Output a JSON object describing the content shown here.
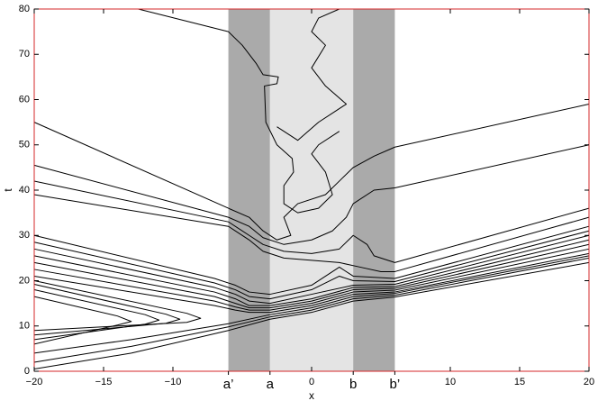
{
  "chart_data": {
    "type": "line",
    "xlabel": "x",
    "ylabel": "t",
    "xlim": [
      -20,
      20
    ],
    "ylim": [
      0,
      80
    ],
    "xticks": [
      {
        "value": -20,
        "label": "−20"
      },
      {
        "value": -15,
        "label": "−15"
      },
      {
        "value": -10,
        "label": "−10"
      },
      0,
      10,
      15,
      20
    ],
    "yticks": [
      0,
      10,
      20,
      30,
      40,
      50,
      60,
      70,
      80
    ],
    "frame_color": "#d62728",
    "bands": [
      {
        "from": -6,
        "to": -3,
        "color": "#aaaaaa"
      },
      {
        "from": -3,
        "to": 3,
        "color": "#e4e4e4"
      },
      {
        "from": 3,
        "to": 6,
        "color": "#aaaaaa"
      }
    ],
    "xmarkers": [
      {
        "value": -6,
        "label": "a’"
      },
      {
        "value": -3,
        "label": "a"
      },
      {
        "value": 3,
        "label": "b"
      },
      {
        "value": 6,
        "label": "b’"
      }
    ],
    "series": [
      {
        "color": "#000000",
        "x": [
          -12.5,
          -6,
          -5,
          -4,
          -3.5,
          -2.4,
          -2.5,
          -3.4,
          -3.3,
          -2.5,
          -1.4,
          -1.3,
          -2,
          -2,
          -1,
          0.5,
          1.5,
          1,
          0,
          0.5,
          2
        ],
        "values": [
          80,
          75,
          72,
          68,
          65.5,
          65,
          63.5,
          63,
          55,
          50,
          47,
          44,
          41,
          37,
          35,
          36,
          39,
          44,
          48,
          50,
          53
        ]
      },
      {
        "color": "#000000",
        "x": [
          -2.5,
          -1,
          0.5,
          2.5,
          1,
          0,
          1,
          0,
          0.5,
          2
        ],
        "values": [
          54,
          51,
          55,
          59,
          63,
          67,
          72,
          75,
          78,
          80
        ]
      },
      {
        "color": "#000000",
        "x": [
          -20,
          -6,
          -4.5,
          -3.5,
          -2.5,
          -1.5,
          -2,
          -1,
          1,
          2,
          3,
          4.5,
          6,
          20
        ],
        "values": [
          55,
          36,
          34,
          31,
          29,
          30,
          34,
          37,
          39,
          42,
          45,
          47.5,
          49.5,
          59
        ]
      },
      {
        "color": "#000000",
        "x": [
          -20,
          -6,
          -4.5,
          -3.5,
          -2,
          0,
          1.5,
          2.5,
          3,
          4.5,
          6,
          20
        ],
        "values": [
          45.5,
          34,
          32,
          29.5,
          28,
          29,
          31,
          34,
          37,
          40,
          40.5,
          50
        ]
      },
      {
        "color": "#000000",
        "x": [
          -20,
          -6,
          -4.5,
          -3.5,
          -2,
          0,
          2,
          3,
          4,
          4.5,
          6,
          20
        ],
        "values": [
          42,
          33,
          30,
          28,
          26.5,
          26,
          27,
          30,
          28,
          25.5,
          24,
          36
        ]
      },
      {
        "color": "#000000",
        "x": [
          -20,
          -6,
          -4.5,
          -3.5,
          -2,
          0,
          2,
          3.5,
          5,
          6,
          20
        ],
        "values": [
          39,
          32,
          29,
          26.5,
          25,
          24.5,
          24,
          23,
          22,
          22,
          34
        ]
      },
      {
        "color": "#000000",
        "x": [
          -20,
          -7,
          -5.5,
          -4.5,
          -3,
          0,
          2,
          3,
          6,
          20
        ],
        "values": [
          30,
          20.5,
          19,
          17.5,
          17,
          19,
          23,
          21,
          20.5,
          32
        ]
      },
      {
        "color": "#000000",
        "x": [
          -20,
          -7,
          -5.5,
          -4.5,
          -3,
          0,
          2,
          3,
          6,
          20
        ],
        "values": [
          28.5,
          19.5,
          18,
          16.5,
          16,
          18,
          21,
          20,
          19.8,
          31
        ]
      },
      {
        "color": "#000000",
        "x": [
          -20,
          -7,
          -5.5,
          -4.5,
          -3,
          0,
          3,
          6,
          20
        ],
        "values": [
          27,
          18.5,
          17,
          15.5,
          15,
          17,
          19,
          19.2,
          30
        ]
      },
      {
        "color": "#000000",
        "x": [
          -20,
          -7,
          -5.5,
          -4.5,
          -3,
          0,
          3,
          6,
          20
        ],
        "values": [
          25.5,
          17.5,
          16,
          14.5,
          14.5,
          16,
          18.5,
          18.7,
          29
        ]
      },
      {
        "color": "#000000",
        "x": [
          -20,
          -7,
          -5.5,
          -4.5,
          -3,
          0,
          3,
          6,
          20
        ],
        "values": [
          24,
          16.5,
          15,
          14,
          14,
          15.5,
          18,
          18.3,
          28
        ]
      },
      {
        "color": "#000000",
        "x": [
          -20,
          -7,
          -5.5,
          -4.5,
          -3,
          0,
          3,
          6,
          20
        ],
        "values": [
          22.5,
          15.5,
          14.2,
          13.5,
          13.5,
          15,
          17.5,
          17.9,
          27
        ]
      },
      {
        "color": "#000000",
        "x": [
          -20,
          -7,
          -5.5,
          -4.5,
          -3,
          0,
          3,
          6,
          20
        ],
        "values": [
          21,
          14.5,
          13.5,
          13,
          13,
          14.5,
          17,
          17.5,
          26
        ]
      },
      {
        "color": "#000000",
        "x": [
          -20,
          -13,
          -6,
          -3,
          0,
          3,
          6,
          20
        ],
        "values": [
          4,
          7,
          10.5,
          12.5,
          14,
          16.5,
          17.2,
          25.5
        ]
      },
      {
        "color": "#000000",
        "x": [
          -20,
          -13,
          -6,
          -3,
          0,
          3,
          6,
          20
        ],
        "values": [
          2,
          5.5,
          9.8,
          12,
          13.5,
          16,
          16.8,
          25
        ]
      },
      {
        "color": "#000000",
        "x": [
          -20,
          -13,
          -6,
          -3,
          0,
          3,
          6,
          20
        ],
        "values": [
          0.5,
          4,
          9,
          11.5,
          13,
          15.5,
          16.4,
          24
        ]
      },
      {
        "color": "#000000",
        "x": [
          -20,
          -14,
          -13,
          -14,
          -20
        ],
        "values": [
          16.5,
          12.2,
          11,
          10.2,
          6
        ]
      },
      {
        "color": "#000000",
        "x": [
          -20,
          -12,
          -11,
          -12,
          -20
        ],
        "values": [
          18,
          12.5,
          11.3,
          10.4,
          7
        ]
      },
      {
        "color": "#000000",
        "x": [
          -20,
          -10.5,
          -9.5,
          -10.5,
          -20
        ],
        "values": [
          19.2,
          12.6,
          11.5,
          10.6,
          8
        ]
      },
      {
        "color": "#000000",
        "x": [
          -20,
          -9,
          -8,
          -9,
          -20
        ],
        "values": [
          20,
          12.8,
          11.7,
          10.8,
          9
        ]
      }
    ]
  }
}
